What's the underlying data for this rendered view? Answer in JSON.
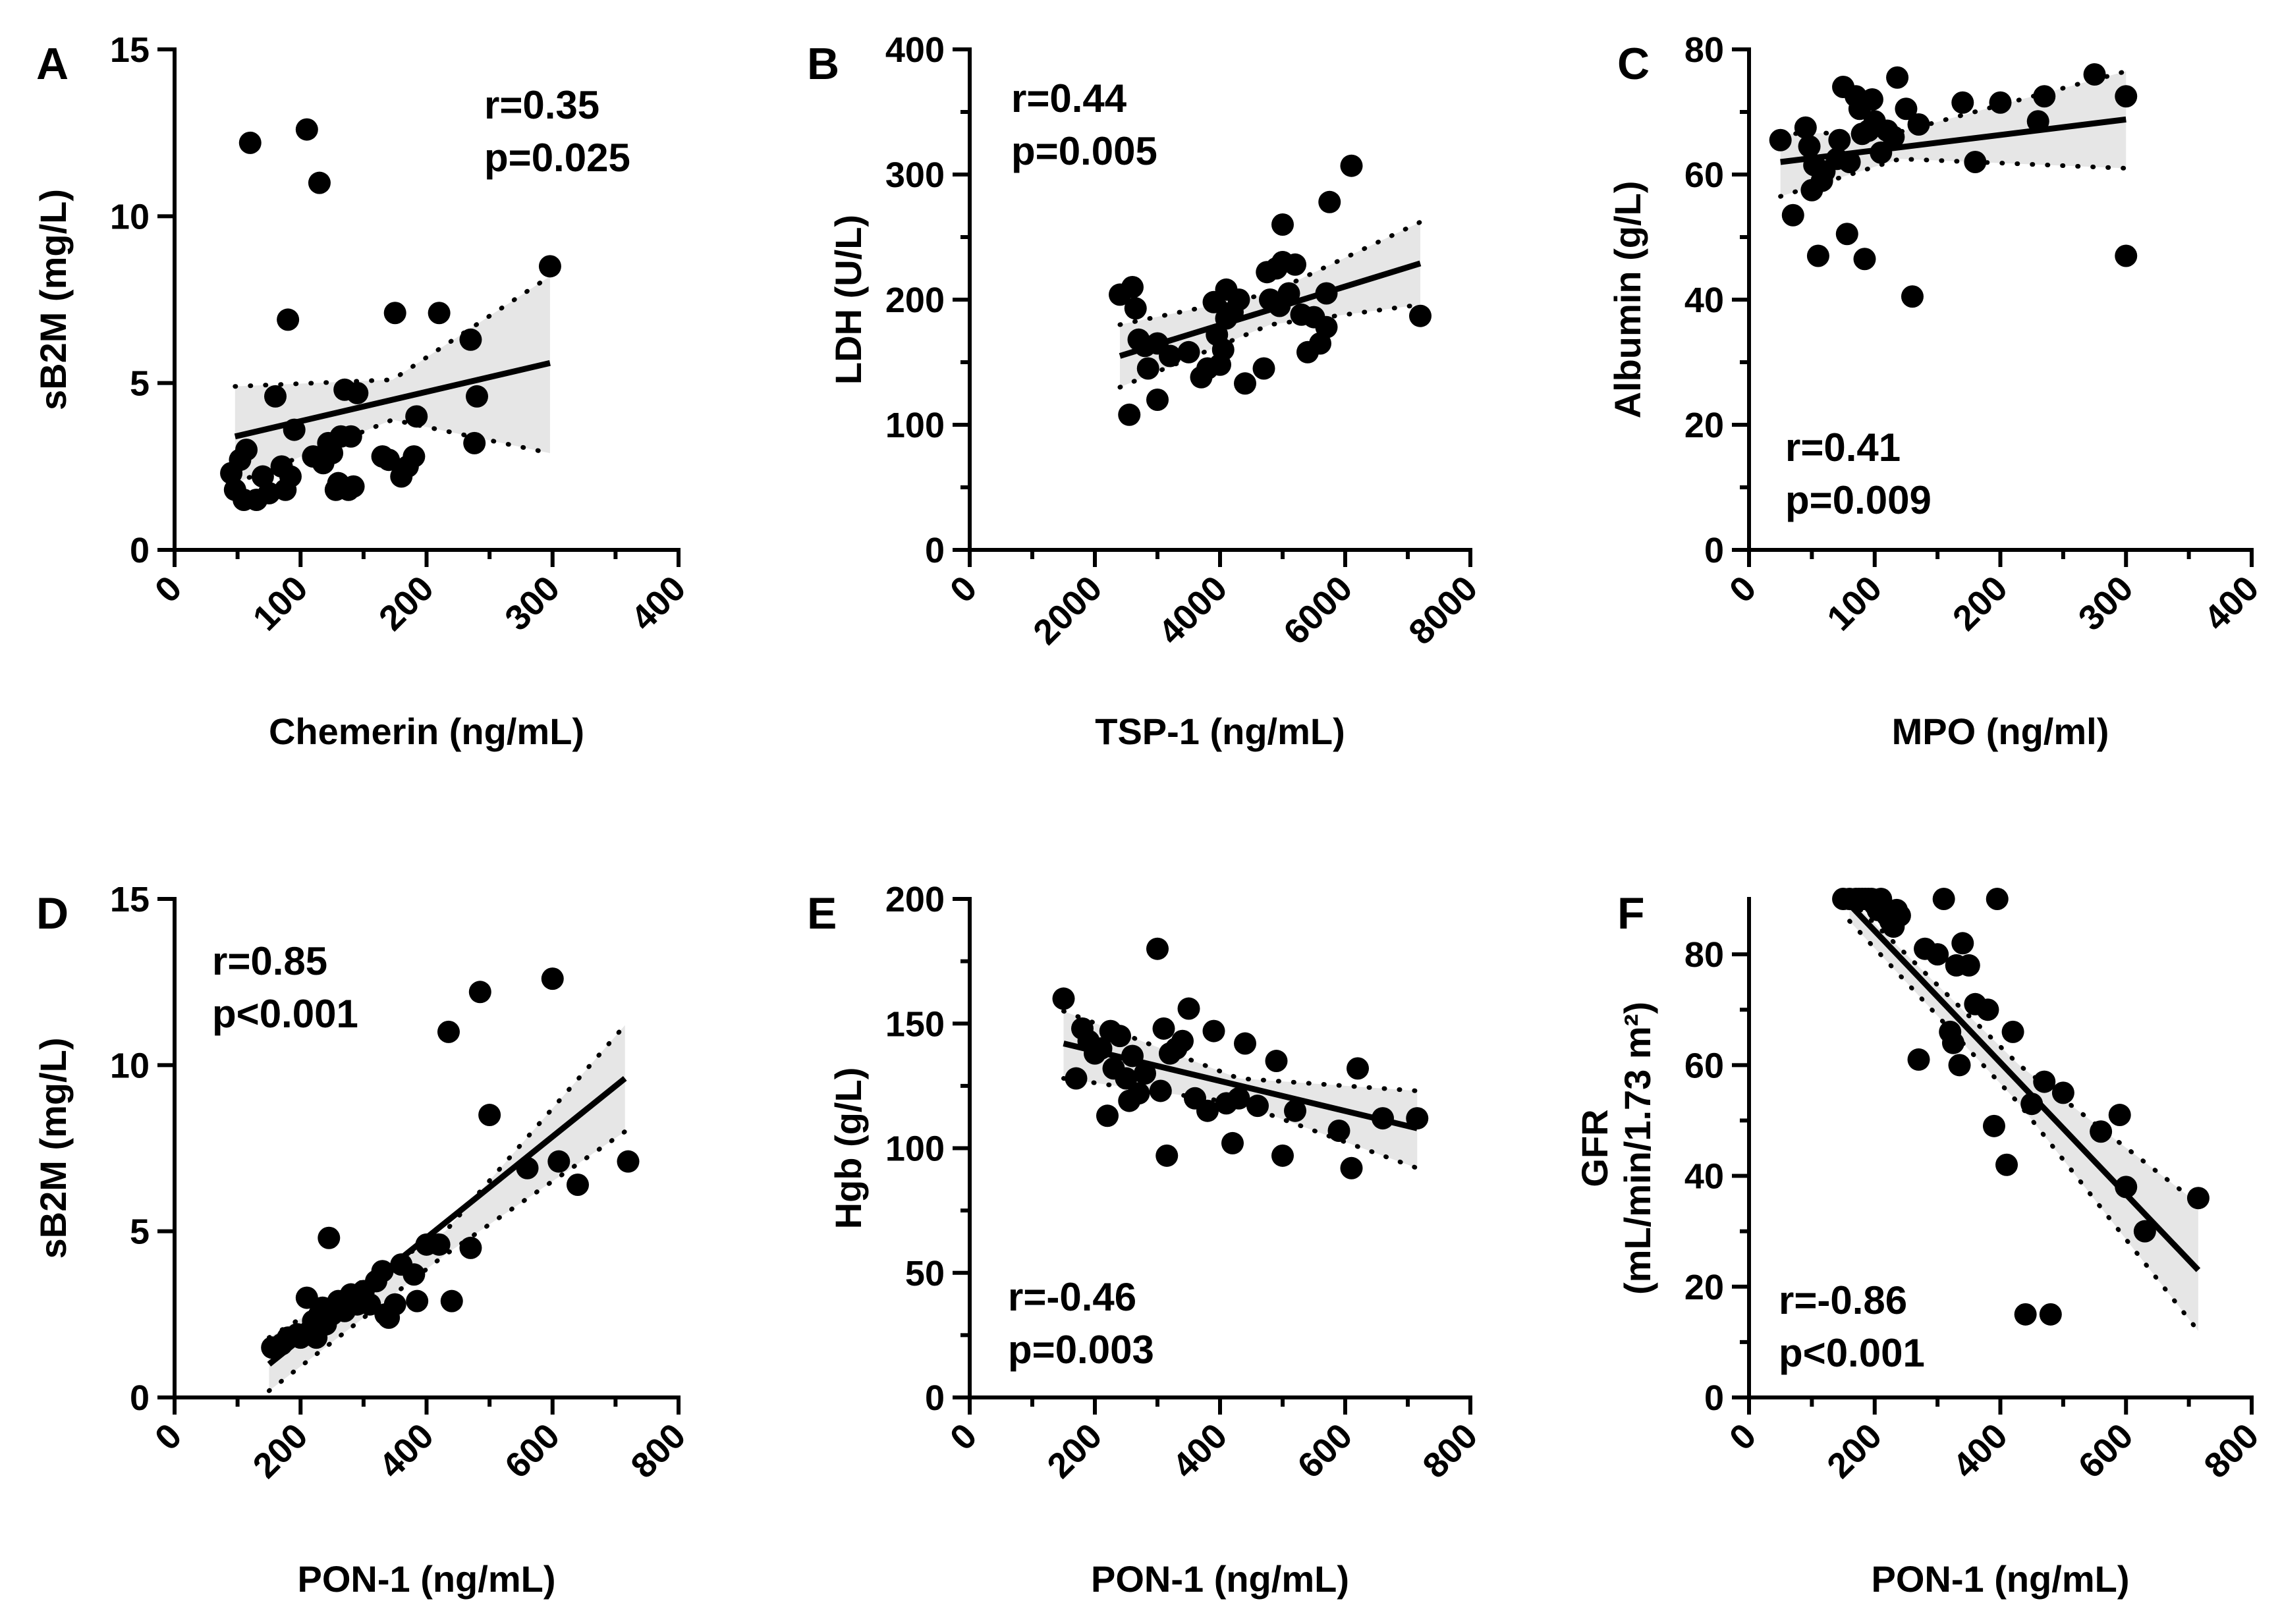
{
  "chart_data": [
    {
      "panel": "A",
      "type": "scatter",
      "xlabel": "Chemerin (ng/mL)",
      "ylabel": "sB2M (mg/L)",
      "xlim": [
        0,
        400
      ],
      "ylim": [
        0,
        15
      ],
      "xticks": [
        0,
        100,
        200,
        300,
        400
      ],
      "yticks": [
        0,
        5,
        10,
        15
      ],
      "xminor": 50,
      "yminor": 0,
      "annotation": [
        "r=0.35",
        "p=0.025"
      ],
      "annot_pos": "top-right",
      "fit": {
        "x": [
          48,
          298
        ],
        "y": [
          3.4,
          5.6
        ]
      },
      "ci": {
        "x": [
          48,
          173,
          298
        ],
        "upper": [
          4.9,
          5.1,
          8.2
        ],
        "lower": [
          2.0,
          3.9,
          2.9
        ]
      },
      "points": [
        [
          45,
          2.3
        ],
        [
          48,
          1.8
        ],
        [
          52,
          2.7
        ],
        [
          55,
          1.5
        ],
        [
          57,
          3.0
        ],
        [
          60,
          12.2
        ],
        [
          65,
          1.5
        ],
        [
          70,
          2.2
        ],
        [
          75,
          1.7
        ],
        [
          80,
          4.6
        ],
        [
          85,
          2.5
        ],
        [
          88,
          1.8
        ],
        [
          90,
          6.9
        ],
        [
          92,
          2.2
        ],
        [
          95,
          3.6
        ],
        [
          105,
          12.6
        ],
        [
          115,
          11.0
        ],
        [
          110,
          2.8
        ],
        [
          118,
          2.6
        ],
        [
          122,
          3.2
        ],
        [
          125,
          2.9
        ],
        [
          128,
          1.8
        ],
        [
          130,
          2.0
        ],
        [
          132,
          3.4
        ],
        [
          135,
          4.8
        ],
        [
          138,
          1.8
        ],
        [
          140,
          3.4
        ],
        [
          142,
          1.9
        ],
        [
          145,
          4.7
        ],
        [
          165,
          2.8
        ],
        [
          170,
          2.7
        ],
        [
          175,
          7.1
        ],
        [
          180,
          2.2
        ],
        [
          185,
          2.5
        ],
        [
          190,
          2.8
        ],
        [
          192,
          4.0
        ],
        [
          210,
          7.1
        ],
        [
          235,
          6.3
        ],
        [
          238,
          3.2
        ],
        [
          240,
          4.6
        ],
        [
          298,
          8.5
        ]
      ]
    },
    {
      "panel": "B",
      "type": "scatter",
      "xlabel": "TSP-1 (ng/mL)",
      "ylabel": "LDH (U/L)",
      "xlim": [
        0,
        8000
      ],
      "ylim": [
        0,
        400
      ],
      "xticks": [
        0,
        2000,
        4000,
        6000,
        8000
      ],
      "yticks": [
        0,
        100,
        200,
        300,
        400
      ],
      "xminor": 1000,
      "yminor": 50,
      "annotation": [
        "r=0.44",
        "p=0.005"
      ],
      "annot_pos": "top-left",
      "fit": {
        "x": [
          2400,
          7200
        ],
        "y": [
          155,
          229
        ]
      },
      "ci": {
        "x": [
          2400,
          4800,
          7200
        ],
        "upper": [
          180,
          205,
          262
        ],
        "lower": [
          130,
          180,
          196
        ]
      },
      "points": [
        [
          2400,
          204
        ],
        [
          2550,
          108
        ],
        [
          2600,
          210
        ],
        [
          2650,
          193
        ],
        [
          2700,
          168
        ],
        [
          2800,
          163
        ],
        [
          2850,
          145
        ],
        [
          3000,
          120
        ],
        [
          3000,
          165
        ],
        [
          3200,
          155
        ],
        [
          3500,
          158
        ],
        [
          3700,
          138
        ],
        [
          3800,
          145
        ],
        [
          3900,
          198
        ],
        [
          3950,
          172
        ],
        [
          4000,
          148
        ],
        [
          4050,
          160
        ],
        [
          4100,
          208
        ],
        [
          4100,
          185
        ],
        [
          4200,
          190
        ],
        [
          4300,
          200
        ],
        [
          4400,
          133
        ],
        [
          4700,
          145
        ],
        [
          4750,
          222
        ],
        [
          4800,
          200
        ],
        [
          4900,
          225
        ],
        [
          4950,
          195
        ],
        [
          5000,
          230
        ],
        [
          5000,
          260
        ],
        [
          5100,
          205
        ],
        [
          5200,
          228
        ],
        [
          5300,
          188
        ],
        [
          5400,
          158
        ],
        [
          5500,
          186
        ],
        [
          5600,
          165
        ],
        [
          5700,
          178
        ],
        [
          5750,
          278
        ],
        [
          5700,
          205
        ],
        [
          6100,
          307
        ],
        [
          7200,
          187
        ]
      ]
    },
    {
      "panel": "C",
      "type": "scatter",
      "xlabel": "MPO (ng/ml)",
      "ylabel": "Albumin (g/L)",
      "xlim": [
        0,
        400
      ],
      "ylim": [
        0,
        80
      ],
      "xticks": [
        0,
        100,
        200,
        300,
        400
      ],
      "yticks": [
        0,
        20,
        40,
        60,
        80
      ],
      "xminor": 50,
      "yminor": 10,
      "annotation": [
        "r=0.41",
        "p=0.009"
      ],
      "annot_pos": "bottom-left",
      "fit": {
        "x": [
          25,
          300
        ],
        "y": [
          62.0,
          68.8
        ]
      },
      "ci": {
        "x": [
          25,
          120,
          300
        ],
        "upper": [
          66.5,
          66.8,
          76.5
        ],
        "lower": [
          56.5,
          62.5,
          61.0
        ]
      },
      "points": [
        [
          25,
          65.5
        ],
        [
          35,
          53.5
        ],
        [
          45,
          67.5
        ],
        [
          48,
          64.5
        ],
        [
          50,
          57.5
        ],
        [
          52,
          61.5
        ],
        [
          55,
          47.0
        ],
        [
          58,
          59.0
        ],
        [
          60,
          60.5
        ],
        [
          70,
          62.5
        ],
        [
          72,
          65.5
        ],
        [
          75,
          74.0
        ],
        [
          78,
          50.5
        ],
        [
          80,
          62.0
        ],
        [
          85,
          72.5
        ],
        [
          88,
          70.5
        ],
        [
          90,
          66.5
        ],
        [
          92,
          46.5
        ],
        [
          95,
          67.0
        ],
        [
          98,
          72.0
        ],
        [
          100,
          68.5
        ],
        [
          105,
          63.5
        ],
        [
          110,
          67.0
        ],
        [
          115,
          66.0
        ],
        [
          118,
          75.5
        ],
        [
          125,
          70.5
        ],
        [
          130,
          40.5
        ],
        [
          135,
          68.0
        ],
        [
          170,
          71.5
        ],
        [
          180,
          62.0
        ],
        [
          200,
          71.5
        ],
        [
          230,
          68.5
        ],
        [
          235,
          72.5
        ],
        [
          275,
          76.0
        ],
        [
          300,
          72.5
        ],
        [
          300,
          47.0
        ]
      ]
    },
    {
      "panel": "D",
      "type": "scatter",
      "xlabel": "PON-1 (ng/mL)",
      "ylabel": "sB2M (mg/L)",
      "xlim": [
        0,
        800
      ],
      "ylim": [
        0,
        15
      ],
      "xticks": [
        0,
        200,
        400,
        600,
        800
      ],
      "yticks": [
        0,
        5,
        10,
        15
      ],
      "xminor": 100,
      "yminor": 0,
      "annotation": [
        "r=0.85",
        "p<0.001"
      ],
      "annot_pos": "top-left",
      "fit": {
        "x": [
          150,
          715
        ],
        "y": [
          1.0,
          9.6
        ]
      },
      "ci": {
        "x": [
          150,
          430,
          715
        ],
        "upper": [
          1.8,
          5.0,
          11.2
        ],
        "lower": [
          0.2,
          4.3,
          8.0
        ]
      },
      "points": [
        [
          155,
          1.5
        ],
        [
          170,
          1.6
        ],
        [
          180,
          1.8
        ],
        [
          195,
          1.9
        ],
        [
          200,
          1.8
        ],
        [
          210,
          3.0
        ],
        [
          215,
          2.0
        ],
        [
          220,
          2.3
        ],
        [
          225,
          1.8
        ],
        [
          230,
          2.5
        ],
        [
          235,
          2.7
        ],
        [
          240,
          2.2
        ],
        [
          245,
          4.8
        ],
        [
          250,
          2.5
        ],
        [
          260,
          2.9
        ],
        [
          270,
          2.6
        ],
        [
          280,
          3.1
        ],
        [
          290,
          2.8
        ],
        [
          300,
          3.2
        ],
        [
          310,
          2.8
        ],
        [
          320,
          3.5
        ],
        [
          330,
          3.8
        ],
        [
          335,
          2.5
        ],
        [
          340,
          2.4
        ],
        [
          350,
          2.8
        ],
        [
          360,
          4.0
        ],
        [
          380,
          3.7
        ],
        [
          385,
          2.9
        ],
        [
          400,
          4.6
        ],
        [
          420,
          4.6
        ],
        [
          435,
          11.0
        ],
        [
          440,
          2.9
        ],
        [
          470,
          4.5
        ],
        [
          485,
          12.2
        ],
        [
          500,
          8.5
        ],
        [
          560,
          6.9
        ],
        [
          600,
          12.6
        ],
        [
          610,
          7.1
        ],
        [
          640,
          6.4
        ],
        [
          720,
          7.1
        ]
      ]
    },
    {
      "panel": "E",
      "type": "scatter",
      "xlabel": "PON-1 (ng/mL)",
      "ylabel": "Hgb (g/L)",
      "xlim": [
        0,
        800
      ],
      "ylim": [
        0,
        200
      ],
      "xticks": [
        0,
        200,
        400,
        600,
        800
      ],
      "yticks": [
        0,
        50,
        100,
        150,
        200
      ],
      "xminor": 100,
      "yminor": 25,
      "annotation": [
        "r=-0.46",
        "p=0.003"
      ],
      "annot_pos": "bottom-left",
      "fit": {
        "x": [
          150,
          715
        ],
        "y": [
          142,
          108
        ]
      },
      "ci": {
        "x": [
          150,
          430,
          715
        ],
        "upper": [
          155,
          128,
          123
        ],
        "lower": [
          128,
          118,
          92
        ]
      },
      "points": [
        [
          150,
          160
        ],
        [
          170,
          128
        ],
        [
          180,
          148
        ],
        [
          190,
          143
        ],
        [
          200,
          138
        ],
        [
          210,
          140
        ],
        [
          220,
          113
        ],
        [
          225,
          147
        ],
        [
          230,
          132
        ],
        [
          240,
          145
        ],
        [
          250,
          128
        ],
        [
          255,
          119
        ],
        [
          260,
          137
        ],
        [
          270,
          122
        ],
        [
          280,
          130
        ],
        [
          300,
          180
        ],
        [
          305,
          123
        ],
        [
          310,
          148
        ],
        [
          315,
          97
        ],
        [
          320,
          138
        ],
        [
          330,
          140
        ],
        [
          340,
          143
        ],
        [
          350,
          156
        ],
        [
          360,
          120
        ],
        [
          380,
          115
        ],
        [
          390,
          147
        ],
        [
          410,
          118
        ],
        [
          420,
          102
        ],
        [
          430,
          120
        ],
        [
          440,
          142
        ],
        [
          460,
          117
        ],
        [
          490,
          135
        ],
        [
          500,
          97
        ],
        [
          520,
          115
        ],
        [
          590,
          107
        ],
        [
          610,
          92
        ],
        [
          620,
          132
        ],
        [
          660,
          112
        ],
        [
          715,
          112
        ]
      ]
    },
    {
      "panel": "F",
      "type": "scatter",
      "xlabel": "PON-1 (ng/mL)",
      "ylabel": "GFR",
      "ylabel2": "(mL/min/1.73 m²)",
      "xlim": [
        0,
        800
      ],
      "ylim": [
        0,
        90
      ],
      "xticks": [
        0,
        200,
        400,
        600,
        800
      ],
      "yticks": [
        0,
        20,
        40,
        60,
        80
      ],
      "xminor": 100,
      "yminor": 10,
      "annotation": [
        "r=-0.86",
        "p<0.001"
      ],
      "annot_pos": "bottom-left",
      "fit": {
        "x": [
          160,
          715
        ],
        "y": [
          89,
          23
        ]
      },
      "ci": {
        "x": [
          160,
          430,
          715
        ],
        "upper": [
          90,
          60,
          35
        ],
        "lower": [
          86,
          53,
          12
        ]
      },
      "points": [
        [
          150,
          90
        ],
        [
          160,
          90
        ],
        [
          170,
          90
        ],
        [
          175,
          90
        ],
        [
          180,
          90
        ],
        [
          185,
          90
        ],
        [
          190,
          90
        ],
        [
          195,
          90
        ],
        [
          200,
          89
        ],
        [
          205,
          88
        ],
        [
          210,
          90
        ],
        [
          215,
          88
        ],
        [
          220,
          87
        ],
        [
          225,
          86
        ],
        [
          230,
          85
        ],
        [
          235,
          88
        ],
        [
          240,
          87
        ],
        [
          270,
          61
        ],
        [
          280,
          81
        ],
        [
          300,
          80
        ],
        [
          310,
          90
        ],
        [
          320,
          66
        ],
        [
          325,
          64
        ],
        [
          330,
          78
        ],
        [
          335,
          60
        ],
        [
          340,
          82
        ],
        [
          350,
          78
        ],
        [
          360,
          71
        ],
        [
          380,
          70
        ],
        [
          390,
          49
        ],
        [
          395,
          90
        ],
        [
          410,
          42
        ],
        [
          420,
          66
        ],
        [
          440,
          15
        ],
        [
          450,
          53
        ],
        [
          470,
          57
        ],
        [
          480,
          15
        ],
        [
          500,
          55
        ],
        [
          560,
          48
        ],
        [
          590,
          51
        ],
        [
          600,
          38
        ],
        [
          630,
          30
        ],
        [
          715,
          36
        ]
      ]
    }
  ]
}
